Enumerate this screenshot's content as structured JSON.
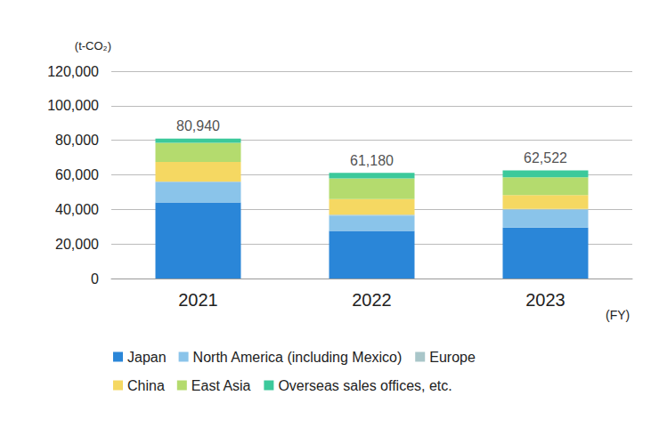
{
  "chart_data": {
    "type": "bar",
    "stacked": true,
    "grid": true,
    "legend": "bottom",
    "y_label": "(t-CO₂)",
    "x_label": "(FY)",
    "categories": [
      "2021",
      "2022",
      "2023"
    ],
    "ylim": [
      0,
      120000
    ],
    "yticks": [
      0,
      {
        "value": 20000,
        "label": "20,000"
      },
      {
        "value": 40000,
        "label": "40,000"
      },
      {
        "value": 60000,
        "label": "60,000"
      },
      {
        "value": 80000,
        "label": "80,000"
      },
      {
        "value": 100000,
        "label": "100,000"
      },
      {
        "value": 120000,
        "label": "120,000"
      }
    ],
    "series": [
      {
        "name": "Japan",
        "color": "#2a86d8",
        "values": [
          44000,
          27500,
          29500
        ]
      },
      {
        "name": "North America (including Mexico)",
        "color": "#8ac4ea",
        "values": [
          11700,
          9000,
          10300
        ]
      },
      {
        "name": "Europe",
        "color": "#a9c6c9",
        "values": [
          500,
          500,
          500
        ]
      },
      {
        "name": "China",
        "color": "#f5d862",
        "values": [
          11300,
          9000,
          8000
        ]
      },
      {
        "name": "East Asia",
        "color": "#b4db6e",
        "values": [
          11000,
          12000,
          10300
        ]
      },
      {
        "name": "Overseas sales offices, etc.",
        "color": "#3cc99b",
        "values": [
          2440,
          3180,
          3922
        ]
      }
    ],
    "totals": {
      "values": [
        80940,
        61180,
        62522
      ],
      "value_labels": [
        "80,940",
        "61,180",
        "62,522"
      ]
    }
  }
}
